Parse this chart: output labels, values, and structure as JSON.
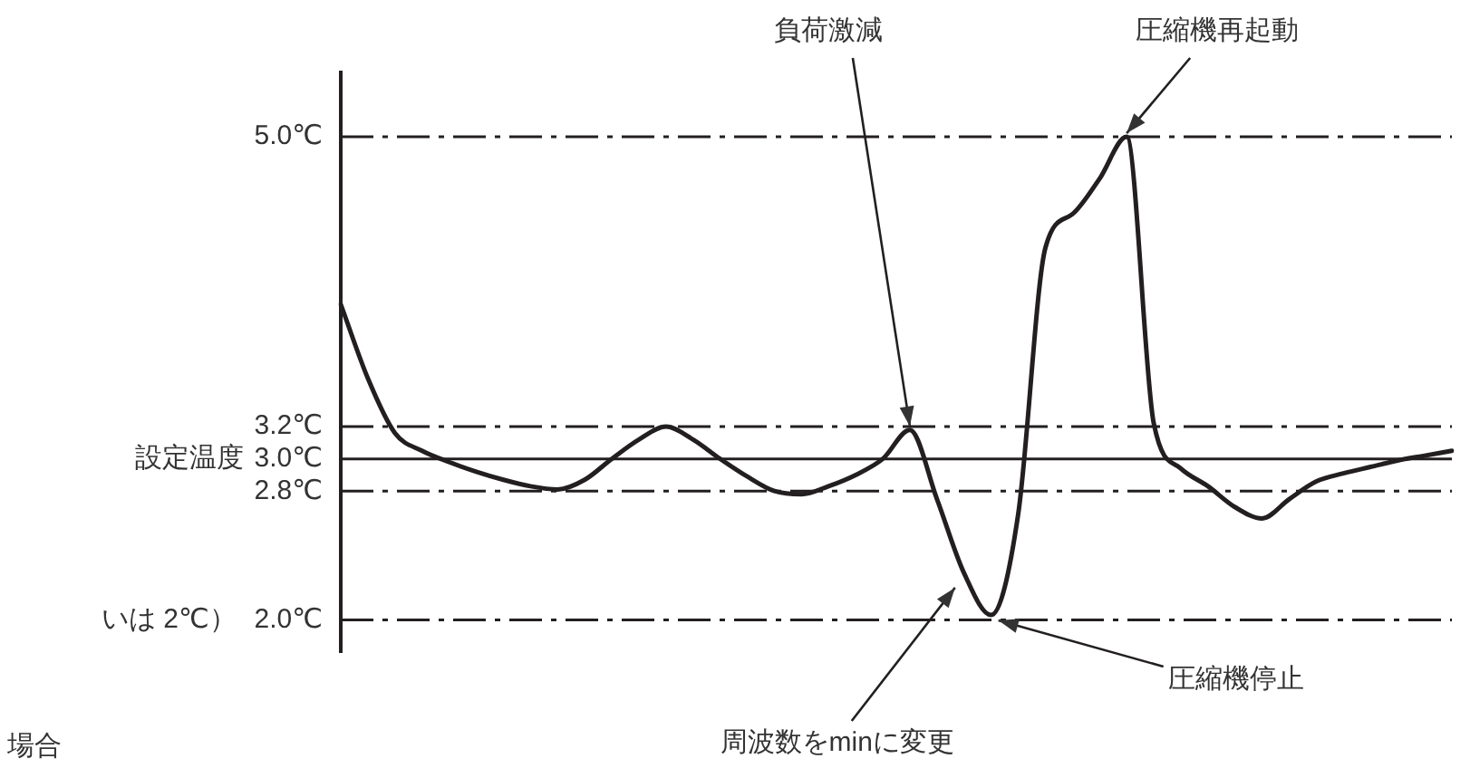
{
  "chart_data": {
    "type": "line",
    "categories": [
      null,
      null,
      null,
      null,
      null,
      null,
      null,
      null,
      null,
      null,
      null,
      null,
      null,
      null,
      null,
      null,
      null,
      null,
      null,
      null,
      null,
      null,
      null,
      null,
      null,
      null,
      null,
      null,
      null,
      null,
      null,
      null,
      null,
      null,
      null,
      null,
      null,
      null,
      null,
      null,
      null,
      null
    ],
    "series": [
      {
        "color": "#231f20",
        "values": [
          3.96,
          3.5,
          3.16,
          3.05,
          2.98,
          2.92,
          2.87,
          2.83,
          2.81,
          2.87,
          3.0,
          3.12,
          3.2,
          3.12,
          3.0,
          2.89,
          2.8,
          2.78,
          2.83,
          2.9,
          3.0,
          3.18,
          2.75,
          2.29,
          2.03,
          2.66,
          4.31,
          4.52,
          4.74,
          5.0,
          3.22,
          2.94,
          2.83,
          2.7,
          2.63,
          2.75,
          2.86,
          2.91,
          2.95,
          2.99,
          3.02,
          3.05
        ]
      }
    ],
    "ylim": [
      1.8,
      5.4
    ],
    "yticks": [
      {
        "value": 2.0,
        "label": "2.0℃"
      },
      {
        "value": 2.8,
        "label": "2.8℃"
      },
      {
        "value": 3.0,
        "label": "3.0℃"
      },
      {
        "value": 3.2,
        "label": "3.2℃"
      },
      {
        "value": 5.0,
        "label": "5.0℃"
      }
    ],
    "tick_labels": "y",
    "grid": false,
    "legend": false,
    "marker": "none",
    "line_style": "solid",
    "ref_lines": [
      {
        "axis": "y",
        "value": 5.0,
        "line_style": "dashed",
        "color": "#231f20"
      },
      {
        "axis": "y",
        "value": 3.2,
        "line_style": "dashed",
        "color": "#231f20"
      },
      {
        "axis": "y",
        "value": 3.0,
        "label": "設定温度",
        "line_style": "solid",
        "color": "#231f20"
      },
      {
        "axis": "y",
        "value": 2.8,
        "line_style": "dashed",
        "color": "#231f20"
      },
      {
        "axis": "y",
        "value": 2.0,
        "line_style": "dashed",
        "color": "#231f20"
      }
    ],
    "annotations": [
      "負荷激減",
      "圧縮機再起動",
      "圧縮機停止",
      "周波数をminに変更",
      "いは 2℃）",
      "場合"
    ]
  }
}
